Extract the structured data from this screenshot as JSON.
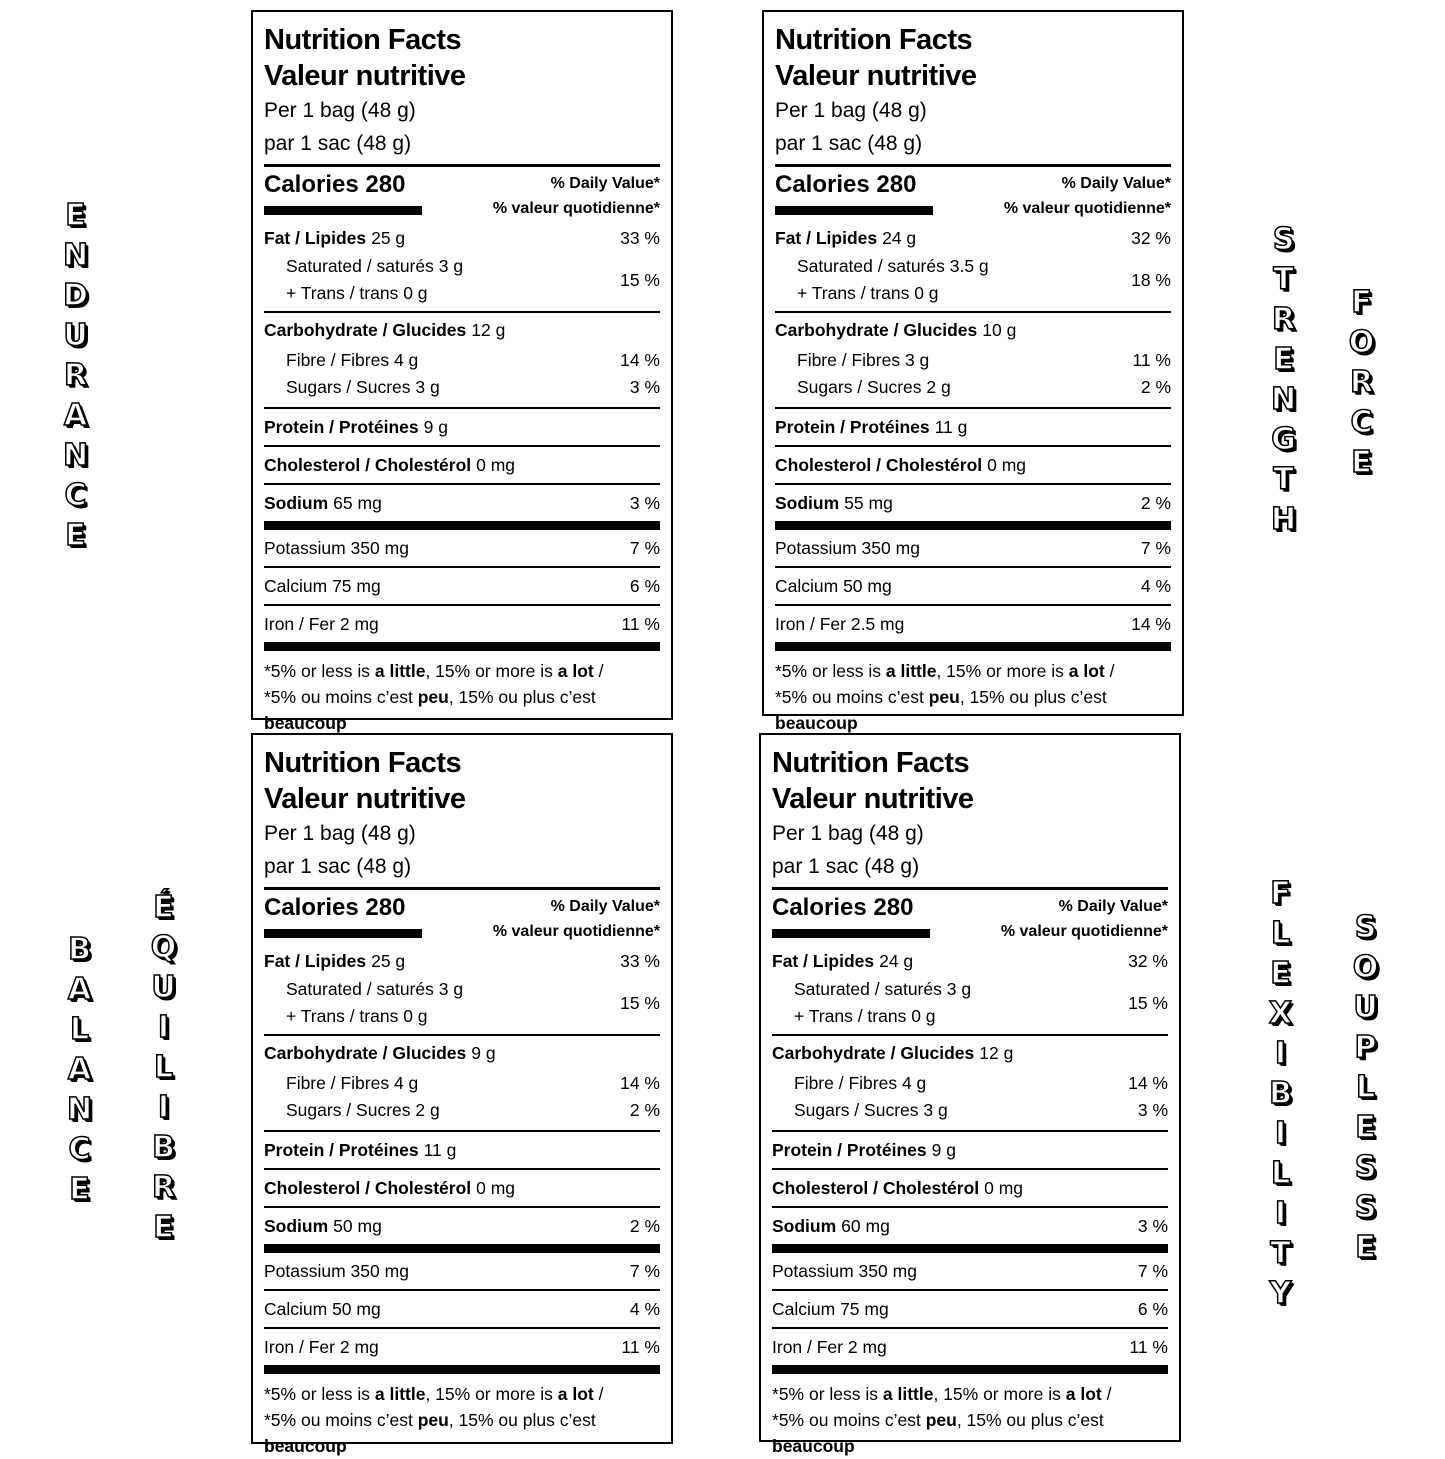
{
  "labels": [
    {
      "title": [
        "Nutrition Facts",
        "Valeur nutritive"
      ],
      "serving": [
        "Per 1 bag (48 g)",
        "par 1 sac (48 g)"
      ],
      "calories": "Calories 280",
      "dv_heading": [
        "% Daily Value*",
        "% valeur quotidienne*"
      ],
      "fat": {
        "name": "Fat / Lipides",
        "amount": "25 g",
        "dv": "33 %"
      },
      "saturated": "Saturated / saturés 3 g",
      "trans": "+ Trans / trans 0 g",
      "saturated_trans_dv": "15 %",
      "carbohydrate": {
        "name": "Carbohydrate / Glucides",
        "amount": "12 g"
      },
      "fibre": {
        "text": "Fibre / Fibres 4 g",
        "dv": "14 %"
      },
      "sugars": {
        "text": "Sugars / Sucres 3 g",
        "dv": "3 %"
      },
      "protein": {
        "name": "Protein / Protéines",
        "amount": "9 g"
      },
      "cholesterol": {
        "name": "Cholesterol / Cholestérol",
        "amount": "0 mg"
      },
      "sodium": {
        "name": "Sodium",
        "amount": "65 mg",
        "dv": "3 %"
      },
      "potassium": {
        "text": "Potassium 350 mg",
        "dv": "7 %"
      },
      "calcium": {
        "text": "Calcium 75 mg",
        "dv": "6 %"
      },
      "iron": {
        "text": "Iron / Fer 2 mg",
        "dv": "11 %"
      },
      "footnote": [
        "*5% or less is ",
        "a little",
        ", 15% or more is ",
        "a lot",
        " / *5% ou moins c’est ",
        "peu",
        ", 15% ou plus c’est ",
        "beaucoup"
      ]
    },
    {
      "title": [
        "Nutrition Facts",
        "Valeur nutritive"
      ],
      "serving": [
        "Per 1 bag (48 g)",
        "par 1 sac (48 g)"
      ],
      "calories": "Calories 280",
      "dv_heading": [
        "% Daily Value*",
        "% valeur quotidienne*"
      ],
      "fat": {
        "name": "Fat / Lipides",
        "amount": "24 g",
        "dv": "32 %"
      },
      "saturated": "Saturated / saturés 3.5 g",
      "trans": "+ Trans / trans 0 g",
      "saturated_trans_dv": "18 %",
      "carbohydrate": {
        "name": "Carbohydrate / Glucides",
        "amount": "10 g"
      },
      "fibre": {
        "text": "Fibre / Fibres 3 g",
        "dv": "11 %"
      },
      "sugars": {
        "text": "Sugars / Sucres 2 g",
        "dv": "2 %"
      },
      "protein": {
        "name": "Protein / Protéines",
        "amount": "11 g"
      },
      "cholesterol": {
        "name": "Cholesterol / Cholestérol",
        "amount": "0 mg"
      },
      "sodium": {
        "name": "Sodium",
        "amount": "55 mg",
        "dv": "2 %"
      },
      "potassium": {
        "text": "Potassium 350 mg",
        "dv": "7 %"
      },
      "calcium": {
        "text": "Calcium 50 mg",
        "dv": "4 %"
      },
      "iron": {
        "text": "Iron / Fer 2.5 mg",
        "dv": "14 %"
      },
      "footnote": [
        "*5% or less is ",
        "a little",
        ", 15% or more is ",
        "a lot",
        " / *5% ou moins c’est ",
        "peu",
        ", 15% ou plus c’est ",
        "beaucoup"
      ]
    },
    {
      "title": [
        "Nutrition Facts",
        "Valeur nutritive"
      ],
      "serving": [
        "Per 1 bag (48 g)",
        "par 1 sac (48 g)"
      ],
      "calories": "Calories 280",
      "dv_heading": [
        "% Daily Value*",
        "% valeur quotidienne*"
      ],
      "fat": {
        "name": "Fat / Lipides",
        "amount": "25 g",
        "dv": "33 %"
      },
      "saturated": "Saturated / saturés 3 g",
      "trans": "+ Trans / trans 0 g",
      "saturated_trans_dv": "15 %",
      "carbohydrate": {
        "name": "Carbohydrate / Glucides",
        "amount": "9 g"
      },
      "fibre": {
        "text": "Fibre / Fibres 4 g",
        "dv": "14 %"
      },
      "sugars": {
        "text": "Sugars / Sucres 2 g",
        "dv": "2 %"
      },
      "protein": {
        "name": "Protein / Protéines",
        "amount": "11 g"
      },
      "cholesterol": {
        "name": "Cholesterol / Cholestérol",
        "amount": "0 mg"
      },
      "sodium": {
        "name": "Sodium",
        "amount": "50 mg",
        "dv": "2 %"
      },
      "potassium": {
        "text": "Potassium 350 mg",
        "dv": "7 %"
      },
      "calcium": {
        "text": "Calcium 50 mg",
        "dv": "4 %"
      },
      "iron": {
        "text": "Iron / Fer 2 mg",
        "dv": "11 %"
      },
      "footnote": [
        "*5% or less is ",
        "a little",
        ", 15% or more is ",
        "a lot",
        " / *5% ou moins c’est ",
        "peu",
        ", 15% ou plus c’est ",
        "beaucoup"
      ]
    },
    {
      "title": [
        "Nutrition Facts",
        "Valeur nutritive"
      ],
      "serving": [
        "Per 1 bag (48 g)",
        "par 1 sac (48 g)"
      ],
      "calories": "Calories 280",
      "dv_heading": [
        "% Daily Value*",
        "% valeur quotidienne*"
      ],
      "fat": {
        "name": "Fat / Lipides",
        "amount": "24 g",
        "dv": "32 %"
      },
      "saturated": "Saturated / saturés 3 g",
      "trans": "+ Trans / trans 0 g",
      "saturated_trans_dv": "15 %",
      "carbohydrate": {
        "name": "Carbohydrate / Glucides",
        "amount": "12 g"
      },
      "fibre": {
        "text": "Fibre / Fibres 4 g",
        "dv": "14 %"
      },
      "sugars": {
        "text": "Sugars / Sucres 3 g",
        "dv": "3 %"
      },
      "protein": {
        "name": "Protein / Protéines",
        "amount": "9 g"
      },
      "cholesterol": {
        "name": "Cholesterol / Cholestérol",
        "amount": "0 mg"
      },
      "sodium": {
        "name": "Sodium",
        "amount": "60 mg",
        "dv": "3 %"
      },
      "potassium": {
        "text": "Potassium 350 mg",
        "dv": "7 %"
      },
      "calcium": {
        "text": "Calcium 75 mg",
        "dv": "6 %"
      },
      "iron": {
        "text": "Iron / Fer 2 mg",
        "dv": "11 %"
      },
      "footnote": [
        "*5% or less is ",
        "a little",
        ", 15% or more is ",
        "a lot",
        " / *5% ou moins c’est ",
        "peu",
        ", 15% ou plus c’est ",
        "beaucoup"
      ]
    }
  ],
  "side_words": [
    "ENDURANCE",
    "STRENGTH",
    "FORCE",
    "BALANCE",
    "ÉQUILIBRE",
    "FLEXIBILITY",
    "SOUPLESSE"
  ]
}
